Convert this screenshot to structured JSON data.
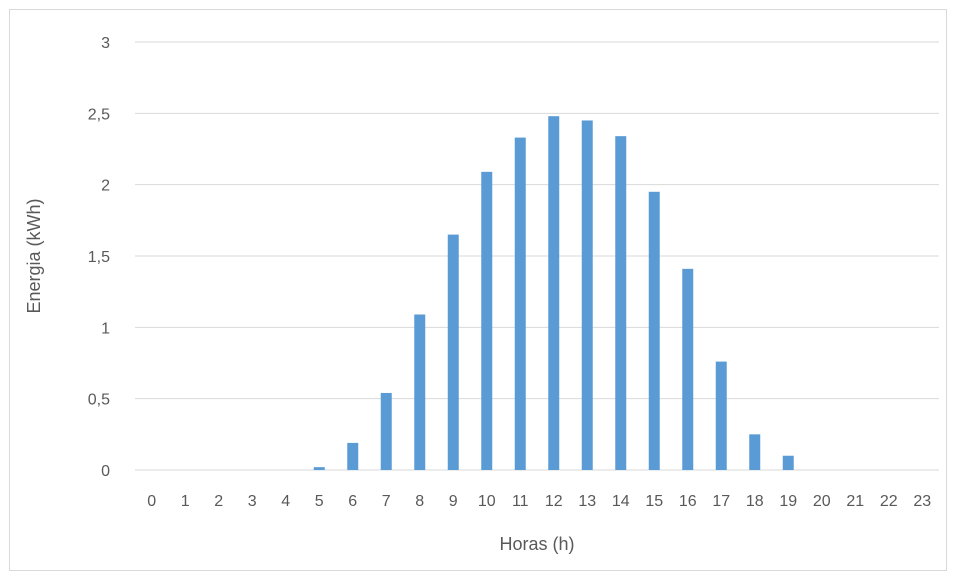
{
  "chart_data": {
    "type": "bar",
    "categories": [
      "0",
      "1",
      "2",
      "3",
      "4",
      "5",
      "6",
      "7",
      "8",
      "9",
      "10",
      "11",
      "12",
      "13",
      "14",
      "15",
      "16",
      "17",
      "18",
      "19",
      "20",
      "21",
      "22",
      "23"
    ],
    "values": [
      0,
      0,
      0,
      0,
      0,
      0.02,
      0.19,
      0.54,
      1.09,
      1.65,
      2.09,
      2.33,
      2.48,
      2.45,
      2.34,
      1.95,
      1.41,
      0.76,
      0.25,
      0.1,
      0,
      0,
      0,
      0
    ],
    "title": "",
    "xlabel": "Horas (h)",
    "ylabel": "Energia (kWh)",
    "ylim": [
      0,
      3
    ],
    "yticks": [
      "0",
      "0,5",
      "1",
      "1,5",
      "2",
      "2,5",
      "3"
    ],
    "grid": true,
    "legend": "none",
    "bar_color": "#5b9bd5",
    "grid_color": "#d9d9d9",
    "text_color": "#595959"
  }
}
